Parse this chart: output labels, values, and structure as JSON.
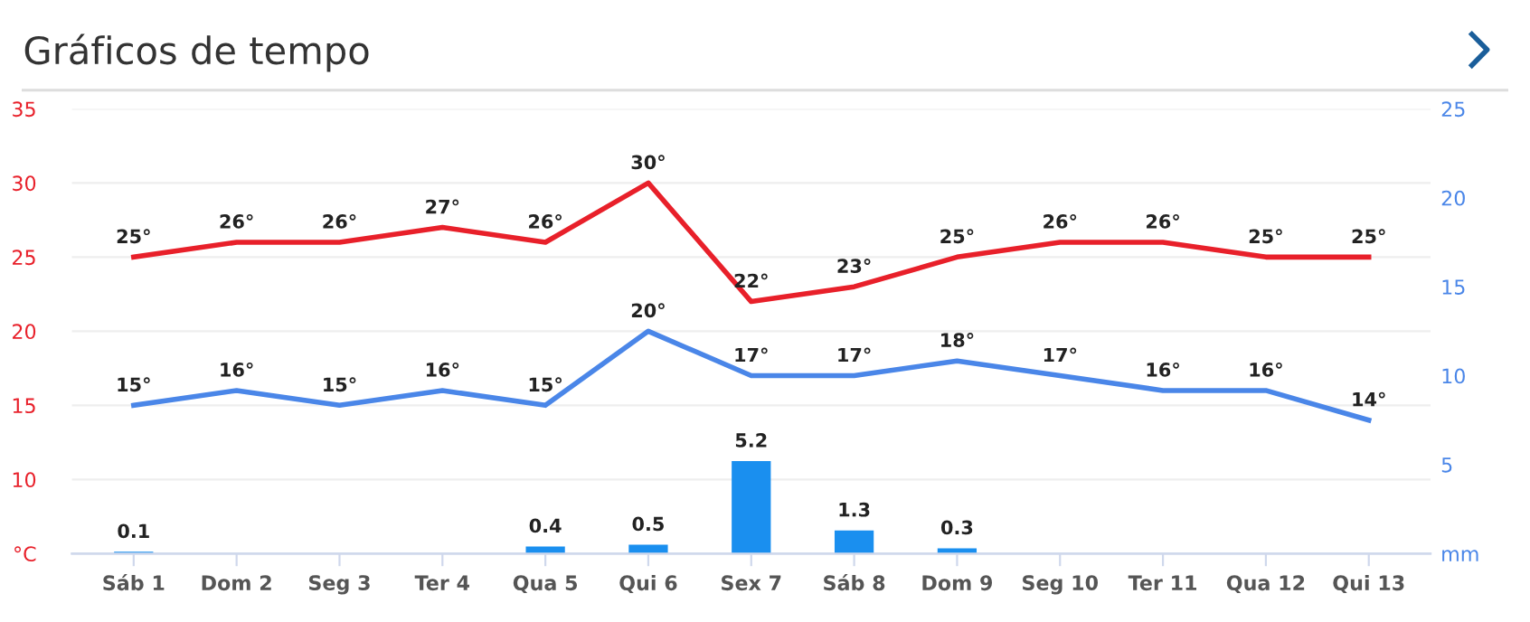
{
  "chart_data": {
    "type": "line",
    "title": "Gráficos de tempo",
    "categories": [
      "Sáb 1",
      "Dom 2",
      "Seg 3",
      "Ter 4",
      "Qua 5",
      "Qui 6",
      "Sex 7",
      "Sáb 8",
      "Dom 9",
      "Seg 10",
      "Ter 11",
      "Qua 12",
      "Qui 13"
    ],
    "series": [
      {
        "color": "#e8202a",
        "values": [
          25,
          26,
          26,
          27,
          26,
          30,
          22,
          23,
          25,
          26,
          26,
          25,
          25
        ],
        "value_labels": [
          "25°",
          "26°",
          "26°",
          "27°",
          "26°",
          "30°",
          "22°",
          "23°",
          "25°",
          "26°",
          "26°",
          "25°",
          "25°"
        ]
      },
      {
        "color": "#4a86e8",
        "values": [
          15,
          16,
          15,
          16,
          15,
          20,
          17,
          17,
          18,
          17,
          16,
          16,
          14
        ],
        "value_labels": [
          "15°",
          "16°",
          "15°",
          "16°",
          "15°",
          "20°",
          "17°",
          "17°",
          "18°",
          "17°",
          "16°",
          "16°",
          "14°"
        ]
      },
      {
        "type": "bar",
        "axis": "y2",
        "color": "#1a8fef",
        "values": [
          0.1,
          0,
          0,
          0,
          0.4,
          0.5,
          5.2,
          1.3,
          0.3,
          0,
          0,
          0,
          0
        ],
        "value_labels": [
          "0.1",
          null,
          null,
          null,
          "0.4",
          "0.5",
          "5.2",
          "1.3",
          "0.3",
          null,
          null,
          null,
          null
        ]
      }
    ],
    "ylim": [
      5,
      35
    ],
    "yticks": [
      {
        "value": 5,
        "label": "°C"
      },
      10,
      15,
      20,
      25,
      30,
      35
    ],
    "y2lim": [
      0,
      25
    ],
    "y2ticks": [
      {
        "value": 0,
        "label": "mm"
      },
      5,
      10,
      15,
      20,
      25
    ],
    "grid": "y",
    "legend": false,
    "marker": "none",
    "line_style": "solid"
  }
}
